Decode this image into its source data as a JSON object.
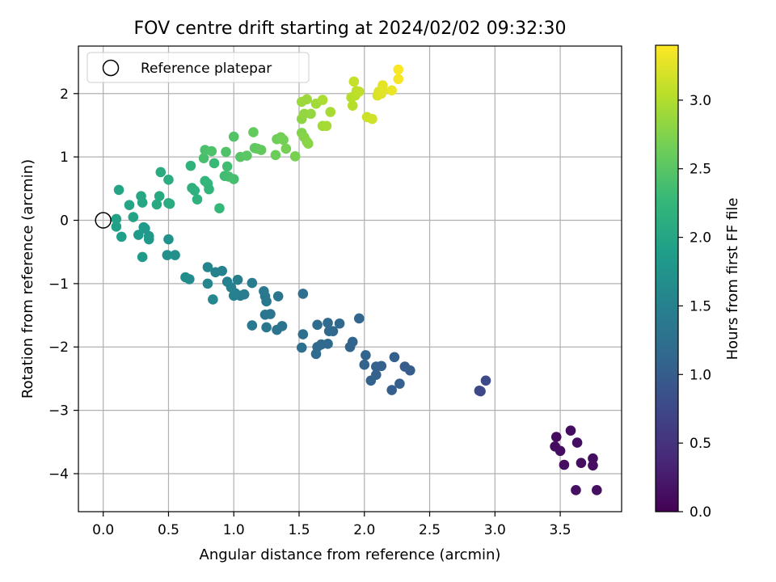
{
  "chart_data": {
    "type": "scatter",
    "title": "FOV centre drift starting at 2024/02/02 09:32:30",
    "xlabel": "Angular distance from reference (arcmin)",
    "ylabel": "Rotation from reference (arcmin)",
    "xlim": [
      -0.19,
      3.97
    ],
    "ylim": [
      -4.6,
      2.75
    ],
    "x_ticks": [
      0.0,
      0.5,
      1.0,
      1.5,
      2.0,
      2.5,
      3.0,
      3.5
    ],
    "y_ticks": [
      -4,
      -3,
      -2,
      -1,
      0,
      1,
      2
    ],
    "x_tick_labels": [
      "0.0",
      "0.5",
      "1.0",
      "1.5",
      "2.0",
      "2.5",
      "3.0",
      "3.5"
    ],
    "y_tick_labels": [
      "−4",
      "−3",
      "−2",
      "−1",
      "0",
      "1",
      "2"
    ],
    "grid": true,
    "legend": {
      "position": "top-left",
      "entries": [
        "Reference platepar"
      ]
    },
    "colorbar": {
      "label": "Hours from first FF file",
      "range": [
        0.0,
        3.4
      ],
      "ticks": [
        0.0,
        0.5,
        1.0,
        1.5,
        2.0,
        2.5,
        3.0
      ],
      "tick_labels": [
        "0.0",
        "0.5",
        "1.0",
        "1.5",
        "2.0",
        "2.5",
        "3.0"
      ],
      "colormap": "viridis"
    },
    "reference_point": {
      "name": "Reference platepar",
      "x": 0.0,
      "y": 0.0
    },
    "colormap_stops": [
      "#440154",
      "#482878",
      "#3e4989",
      "#31688e",
      "#26828e",
      "#1f9e89",
      "#35b779",
      "#6ece58",
      "#b5de2b",
      "#fde725"
    ],
    "points": [
      {
        "x": 3.47,
        "y": -3.42,
        "t": 0.1
      },
      {
        "x": 3.46,
        "y": -3.57,
        "t": 0.1
      },
      {
        "x": 3.5,
        "y": -3.64,
        "t": 0.12
      },
      {
        "x": 3.58,
        "y": -3.32,
        "t": 0.12
      },
      {
        "x": 3.63,
        "y": -3.51,
        "t": 0.13
      },
      {
        "x": 3.53,
        "y": -3.86,
        "t": 0.13
      },
      {
        "x": 3.66,
        "y": -3.83,
        "t": 0.14
      },
      {
        "x": 3.75,
        "y": -3.76,
        "t": 0.14
      },
      {
        "x": 3.75,
        "y": -3.87,
        "t": 0.15
      },
      {
        "x": 3.62,
        "y": -4.26,
        "t": 0.15
      },
      {
        "x": 3.78,
        "y": -4.26,
        "t": 0.15
      },
      {
        "x": 2.88,
        "y": -2.69,
        "t": 0.75
      },
      {
        "x": 2.89,
        "y": -2.7,
        "t": 0.75
      },
      {
        "x": 2.93,
        "y": -2.53,
        "t": 0.78
      },
      {
        "x": 2.35,
        "y": -2.37,
        "t": 1.0
      },
      {
        "x": 2.31,
        "y": -2.31,
        "t": 1.0
      },
      {
        "x": 2.27,
        "y": -2.58,
        "t": 1.02
      },
      {
        "x": 2.21,
        "y": -2.68,
        "t": 1.02
      },
      {
        "x": 2.23,
        "y": -2.16,
        "t": 1.04
      },
      {
        "x": 2.13,
        "y": -2.3,
        "t": 1.05
      },
      {
        "x": 2.09,
        "y": -2.31,
        "t": 1.05
      },
      {
        "x": 2.09,
        "y": -2.44,
        "t": 1.06
      },
      {
        "x": 2.05,
        "y": -2.53,
        "t": 1.07
      },
      {
        "x": 2.0,
        "y": -2.28,
        "t": 1.08
      },
      {
        "x": 2.01,
        "y": -2.13,
        "t": 1.08
      },
      {
        "x": 1.91,
        "y": -1.92,
        "t": 1.1
      },
      {
        "x": 1.89,
        "y": -2.0,
        "t": 1.1
      },
      {
        "x": 1.96,
        "y": -1.55,
        "t": 1.12
      },
      {
        "x": 1.81,
        "y": -1.63,
        "t": 1.14
      },
      {
        "x": 1.76,
        "y": -1.75,
        "t": 1.15
      },
      {
        "x": 1.73,
        "y": -1.75,
        "t": 1.16
      },
      {
        "x": 1.72,
        "y": -1.62,
        "t": 1.17
      },
      {
        "x": 1.72,
        "y": -1.95,
        "t": 1.17
      },
      {
        "x": 1.67,
        "y": -1.96,
        "t": 1.18
      },
      {
        "x": 1.64,
        "y": -2.0,
        "t": 1.18
      },
      {
        "x": 1.63,
        "y": -2.11,
        "t": 1.19
      },
      {
        "x": 1.64,
        "y": -1.65,
        "t": 1.2
      },
      {
        "x": 1.52,
        "y": -2.01,
        "t": 1.22
      },
      {
        "x": 1.53,
        "y": -1.8,
        "t": 1.23
      },
      {
        "x": 1.53,
        "y": -1.16,
        "t": 1.25
      },
      {
        "x": 1.37,
        "y": -1.67,
        "t": 1.3
      },
      {
        "x": 1.33,
        "y": -1.73,
        "t": 1.31
      },
      {
        "x": 1.34,
        "y": -1.2,
        "t": 1.32
      },
      {
        "x": 1.28,
        "y": -1.48,
        "t": 1.33
      },
      {
        "x": 1.24,
        "y": -1.49,
        "t": 1.34
      },
      {
        "x": 1.25,
        "y": -1.69,
        "t": 1.35
      },
      {
        "x": 1.25,
        "y": -1.28,
        "t": 1.36
      },
      {
        "x": 1.24,
        "y": -1.2,
        "t": 1.37
      },
      {
        "x": 1.23,
        "y": -1.12,
        "t": 1.38
      },
      {
        "x": 1.14,
        "y": -1.66,
        "t": 1.4
      },
      {
        "x": 1.14,
        "y": -0.99,
        "t": 1.42
      },
      {
        "x": 1.08,
        "y": -1.17,
        "t": 1.44
      },
      {
        "x": 1.05,
        "y": -1.19,
        "t": 1.45
      },
      {
        "x": 1.01,
        "y": -1.15,
        "t": 1.46
      },
      {
        "x": 1.03,
        "y": -0.94,
        "t": 1.47
      },
      {
        "x": 1.0,
        "y": -1.19,
        "t": 1.48
      },
      {
        "x": 0.98,
        "y": -1.06,
        "t": 1.49
      },
      {
        "x": 0.95,
        "y": -0.97,
        "t": 1.5
      },
      {
        "x": 0.91,
        "y": -0.8,
        "t": 1.52
      },
      {
        "x": 0.86,
        "y": -0.82,
        "t": 1.53
      },
      {
        "x": 0.8,
        "y": -0.74,
        "t": 1.55
      },
      {
        "x": 0.8,
        "y": -1.0,
        "t": 1.56
      },
      {
        "x": 0.84,
        "y": -1.25,
        "t": 1.57
      },
      {
        "x": 0.66,
        "y": -0.93,
        "t": 1.65
      },
      {
        "x": 0.63,
        "y": -0.9,
        "t": 1.66
      },
      {
        "x": 0.55,
        "y": -0.55,
        "t": 1.7
      },
      {
        "x": 0.49,
        "y": -0.55,
        "t": 1.72
      },
      {
        "x": 0.5,
        "y": -0.3,
        "t": 1.74
      },
      {
        "x": 0.35,
        "y": -0.25,
        "t": 1.8
      },
      {
        "x": 0.35,
        "y": -0.3,
        "t": 1.81
      },
      {
        "x": 0.32,
        "y": -0.13,
        "t": 1.82
      },
      {
        "x": 0.31,
        "y": -0.11,
        "t": 1.83
      },
      {
        "x": 0.27,
        "y": -0.23,
        "t": 1.84
      },
      {
        "x": 0.3,
        "y": -0.58,
        "t": 1.85
      },
      {
        "x": 0.14,
        "y": -0.26,
        "t": 1.9
      },
      {
        "x": 0.1,
        "y": -0.1,
        "t": 1.92
      },
      {
        "x": 0.1,
        "y": 0.02,
        "t": 1.95
      },
      {
        "x": 0.23,
        "y": 0.05,
        "t": 1.97
      },
      {
        "x": 0.2,
        "y": 0.24,
        "t": 1.99
      },
      {
        "x": 0.12,
        "y": 0.48,
        "t": 2.0
      },
      {
        "x": 0.3,
        "y": 0.28,
        "t": 2.02
      },
      {
        "x": 0.29,
        "y": 0.38,
        "t": 2.03
      },
      {
        "x": 0.41,
        "y": 0.25,
        "t": 2.05
      },
      {
        "x": 0.43,
        "y": 0.38,
        "t": 2.06
      },
      {
        "x": 0.5,
        "y": 0.27,
        "t": 2.07
      },
      {
        "x": 0.51,
        "y": 0.26,
        "t": 2.08
      },
      {
        "x": 0.44,
        "y": 0.76,
        "t": 2.1
      },
      {
        "x": 0.5,
        "y": 0.64,
        "t": 2.11
      },
      {
        "x": 0.68,
        "y": 0.51,
        "t": 2.15
      },
      {
        "x": 0.7,
        "y": 0.47,
        "t": 2.16
      },
      {
        "x": 0.72,
        "y": 0.33,
        "t": 2.17
      },
      {
        "x": 0.67,
        "y": 0.86,
        "t": 2.19
      },
      {
        "x": 0.78,
        "y": 0.62,
        "t": 2.22
      },
      {
        "x": 0.8,
        "y": 0.58,
        "t": 2.23
      },
      {
        "x": 0.81,
        "y": 0.49,
        "t": 2.24
      },
      {
        "x": 0.89,
        "y": 0.19,
        "t": 2.26
      },
      {
        "x": 0.85,
        "y": 0.9,
        "t": 2.3
      },
      {
        "x": 0.93,
        "y": 0.7,
        "t": 2.33
      },
      {
        "x": 0.95,
        "y": 0.85,
        "t": 2.35
      },
      {
        "x": 0.96,
        "y": 0.69,
        "t": 2.37
      },
      {
        "x": 1.0,
        "y": 0.65,
        "t": 2.38
      },
      {
        "x": 0.77,
        "y": 0.98,
        "t": 2.4
      },
      {
        "x": 0.78,
        "y": 1.11,
        "t": 2.42
      },
      {
        "x": 0.83,
        "y": 1.09,
        "t": 2.43
      },
      {
        "x": 0.94,
        "y": 1.08,
        "t": 2.45
      },
      {
        "x": 1.0,
        "y": 1.32,
        "t": 2.47
      },
      {
        "x": 1.05,
        "y": 1.0,
        "t": 2.5
      },
      {
        "x": 1.1,
        "y": 1.02,
        "t": 2.52
      },
      {
        "x": 1.16,
        "y": 1.14,
        "t": 2.54
      },
      {
        "x": 1.18,
        "y": 1.13,
        "t": 2.55
      },
      {
        "x": 1.21,
        "y": 1.11,
        "t": 2.57
      },
      {
        "x": 1.15,
        "y": 1.39,
        "t": 2.58
      },
      {
        "x": 1.32,
        "y": 1.03,
        "t": 2.62
      },
      {
        "x": 1.33,
        "y": 1.28,
        "t": 2.64
      },
      {
        "x": 1.36,
        "y": 1.31,
        "t": 2.66
      },
      {
        "x": 1.38,
        "y": 1.27,
        "t": 2.67
      },
      {
        "x": 1.4,
        "y": 1.13,
        "t": 2.68
      },
      {
        "x": 1.47,
        "y": 1.01,
        "t": 2.7
      },
      {
        "x": 1.52,
        "y": 1.38,
        "t": 2.75
      },
      {
        "x": 1.54,
        "y": 1.31,
        "t": 2.77
      },
      {
        "x": 1.56,
        "y": 1.24,
        "t": 2.78
      },
      {
        "x": 1.57,
        "y": 1.21,
        "t": 2.79
      },
      {
        "x": 1.52,
        "y": 1.6,
        "t": 2.82
      },
      {
        "x": 1.54,
        "y": 1.68,
        "t": 2.84
      },
      {
        "x": 1.59,
        "y": 1.68,
        "t": 2.85
      },
      {
        "x": 1.52,
        "y": 1.87,
        "t": 2.88
      },
      {
        "x": 1.56,
        "y": 1.91,
        "t": 2.89
      },
      {
        "x": 1.63,
        "y": 1.84,
        "t": 2.91
      },
      {
        "x": 1.68,
        "y": 1.49,
        "t": 2.93
      },
      {
        "x": 1.71,
        "y": 1.49,
        "t": 2.94
      },
      {
        "x": 1.74,
        "y": 1.71,
        "t": 2.95
      },
      {
        "x": 1.68,
        "y": 1.9,
        "t": 2.97
      },
      {
        "x": 1.9,
        "y": 1.94,
        "t": 3.02
      },
      {
        "x": 1.91,
        "y": 1.81,
        "t": 3.03
      },
      {
        "x": 1.93,
        "y": 1.97,
        "t": 3.05
      },
      {
        "x": 1.94,
        "y": 2.04,
        "t": 3.07
      },
      {
        "x": 1.96,
        "y": 2.03,
        "t": 3.08
      },
      {
        "x": 1.92,
        "y": 2.19,
        "t": 3.1
      },
      {
        "x": 2.02,
        "y": 1.63,
        "t": 3.14
      },
      {
        "x": 2.06,
        "y": 1.6,
        "t": 3.16
      },
      {
        "x": 2.1,
        "y": 1.97,
        "t": 3.2
      },
      {
        "x": 2.11,
        "y": 2.03,
        "t": 3.22
      },
      {
        "x": 2.13,
        "y": 2.0,
        "t": 3.23
      },
      {
        "x": 2.14,
        "y": 2.05,
        "t": 3.25
      },
      {
        "x": 2.14,
        "y": 2.13,
        "t": 3.27
      },
      {
        "x": 2.21,
        "y": 2.05,
        "t": 3.3
      },
      {
        "x": 2.26,
        "y": 2.23,
        "t": 3.36
      },
      {
        "x": 2.26,
        "y": 2.38,
        "t": 3.38
      }
    ]
  }
}
